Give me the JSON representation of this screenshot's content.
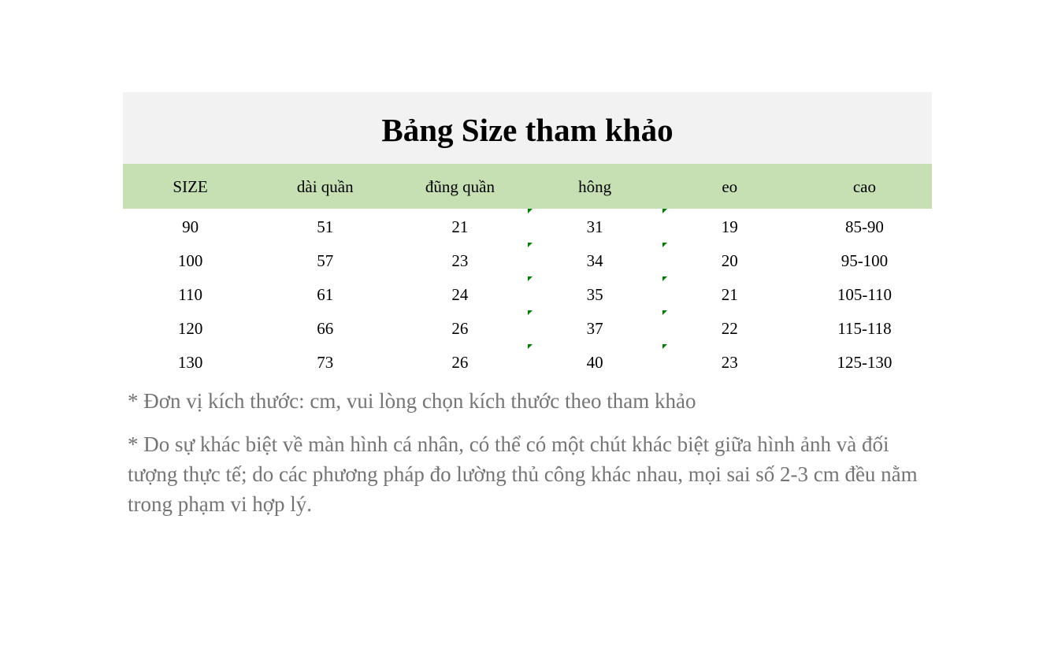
{
  "title": "Bảng Size tham khảo",
  "headers": [
    "SIZE",
    "dài quần",
    "đũng quần",
    "hông",
    "eo",
    "cao"
  ],
  "rows": [
    [
      "90",
      "51",
      "21",
      "31",
      "19",
      "85-90"
    ],
    [
      "100",
      "57",
      "23",
      "34",
      "20",
      "95-100"
    ],
    [
      "110",
      "61",
      "24",
      "35",
      "21",
      "105-110"
    ],
    [
      "120",
      "66",
      "26",
      "37",
      "22",
      "115-118"
    ],
    [
      "130",
      "73",
      "26",
      "40",
      "23",
      "125-130"
    ]
  ],
  "notes": [
    "* Đơn vị kích thước: cm, vui lòng chọn kích thước theo tham khảo",
    "* Do sự khác biệt về màn hình cá nhân, có thể có một chút khác biệt giữa hình ảnh và đối tượng thực tế; do các phương pháp đo lường thủ công khác nhau, mọi sai số 2-3 cm đều nằm trong phạm vi hợp lý."
  ],
  "colors": {
    "title_bg": "#f2f2f2",
    "header_bg": "#c6e0b4",
    "note_text": "#757575",
    "cell_marker": "#008000"
  }
}
